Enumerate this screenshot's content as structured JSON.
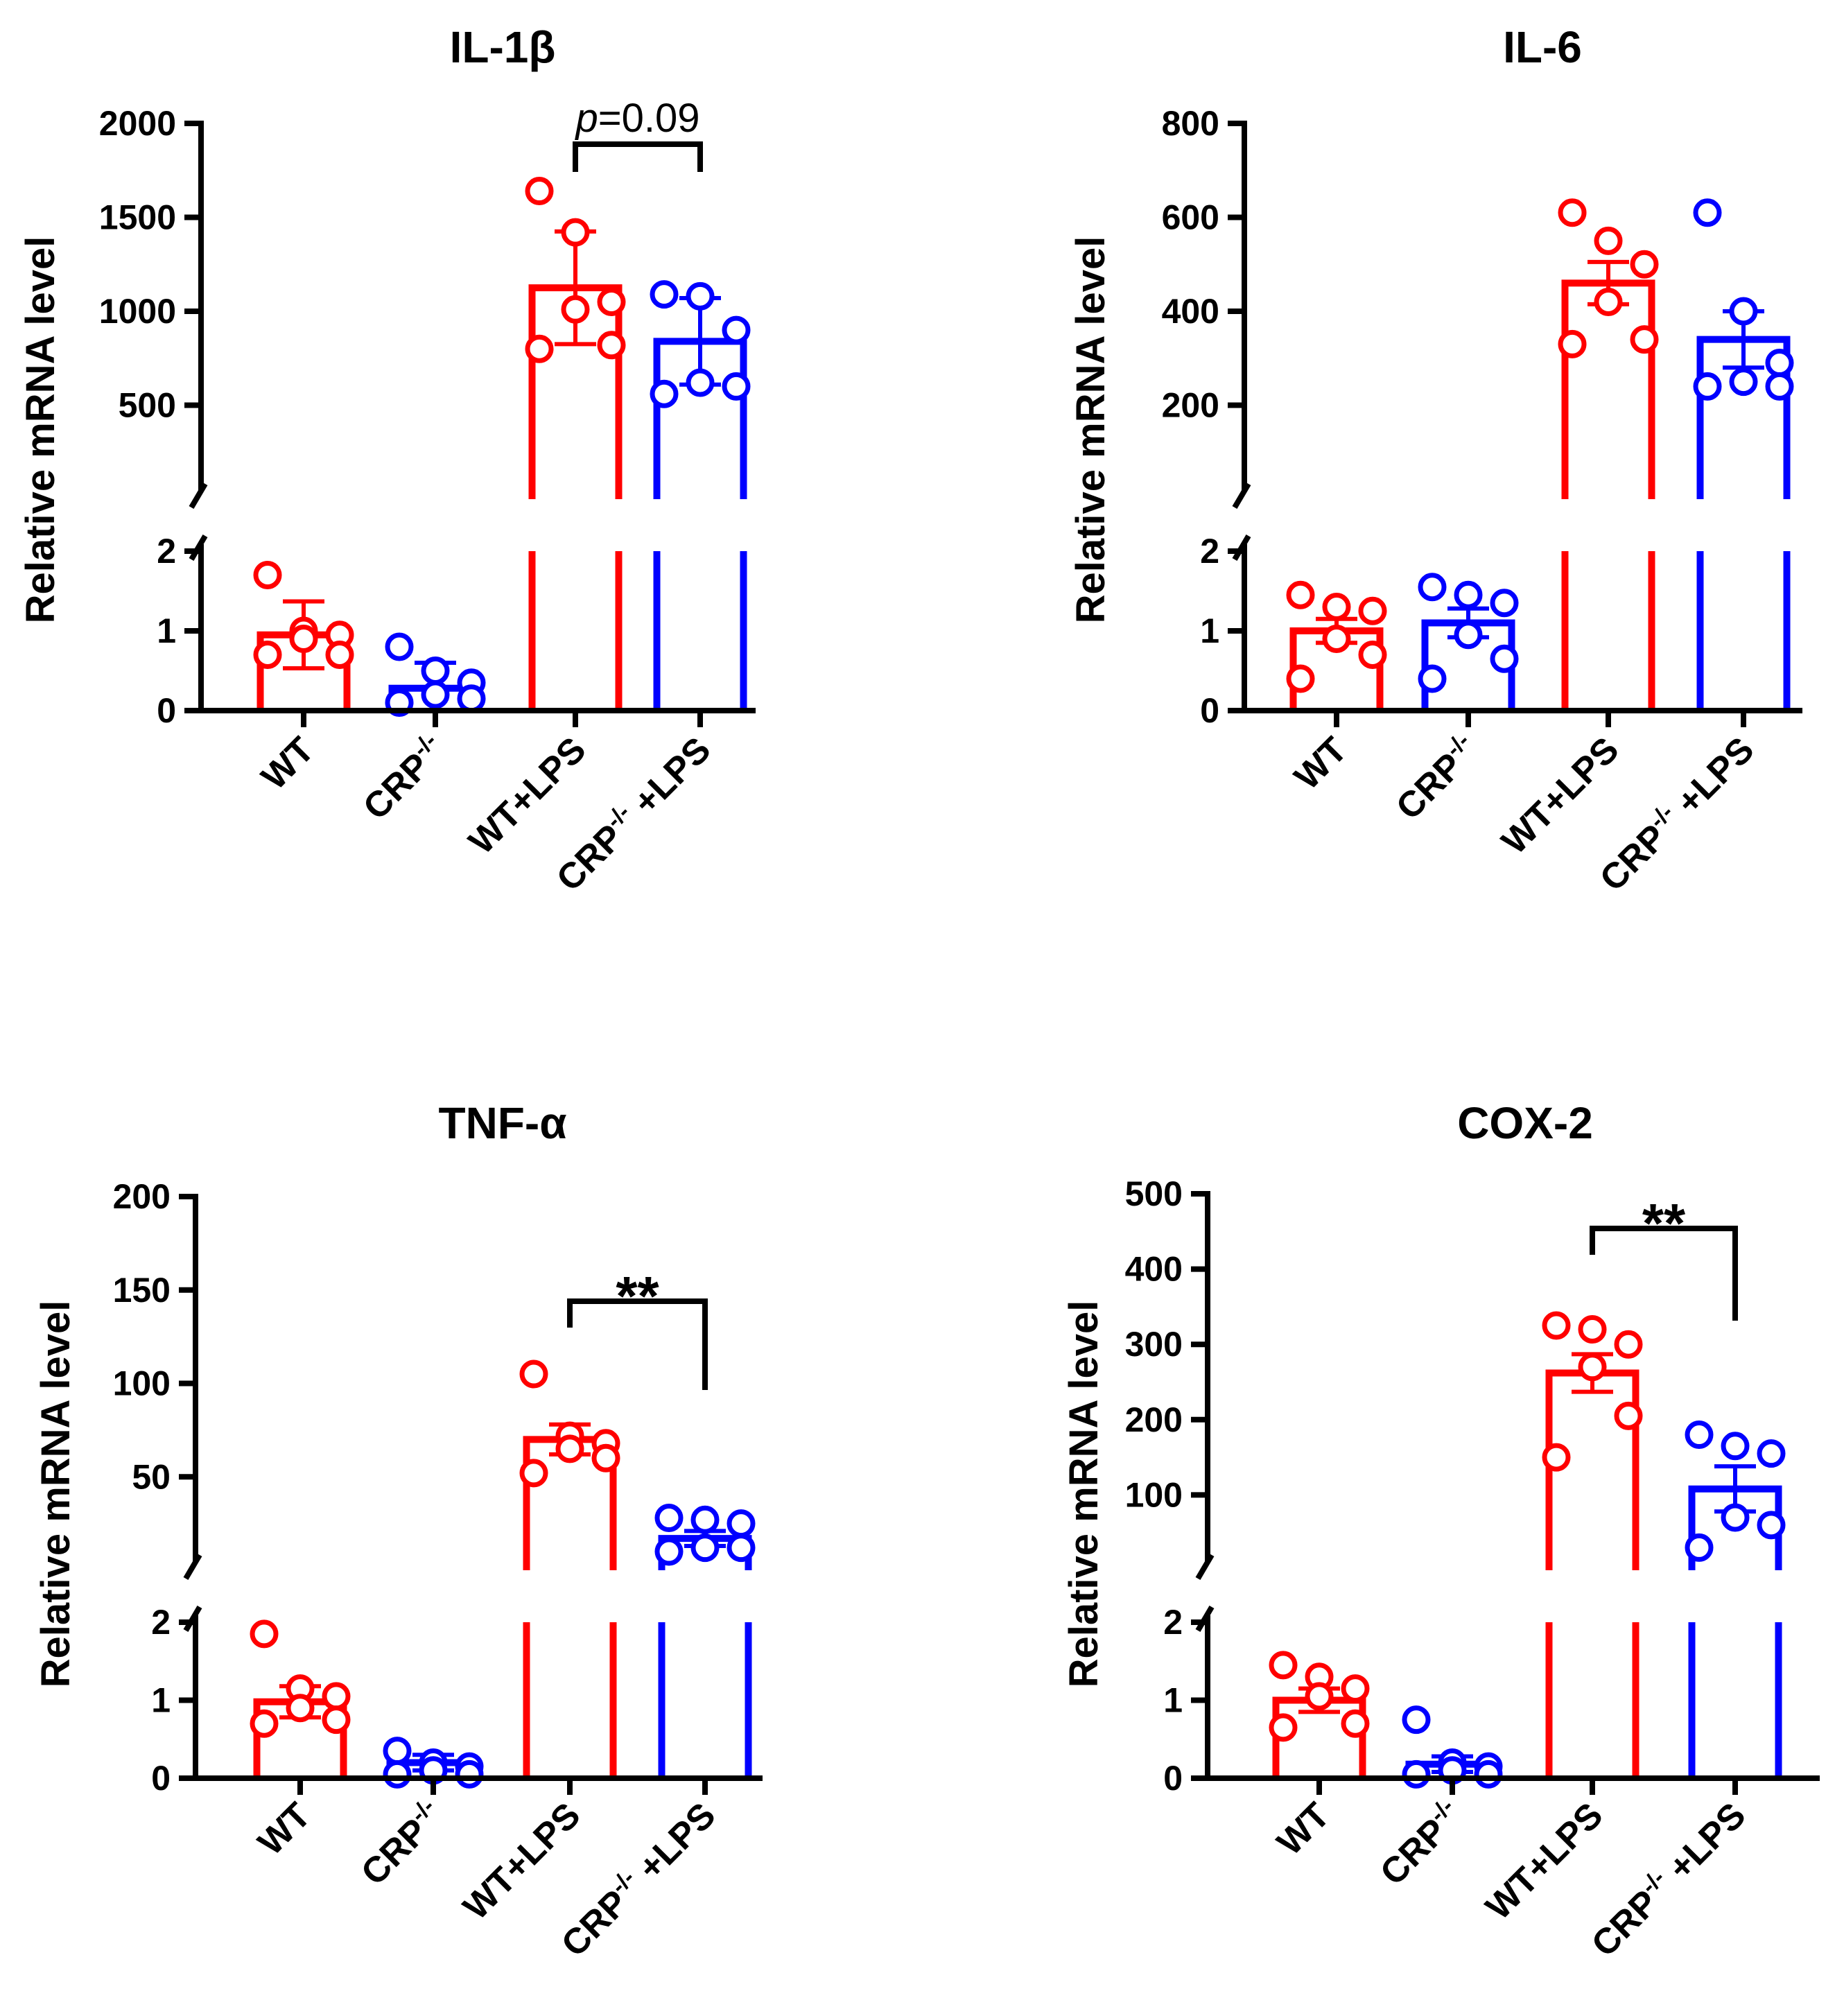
{
  "colors": {
    "wt": "#ff0000",
    "crp": "#0000ff",
    "axis": "#000000"
  },
  "chart_data": [
    {
      "type": "bar",
      "title": "IL-1β",
      "ylabel": "Relative mRNA level",
      "categories": [
        "WT",
        "CRP-/-",
        "WT+LPS",
        "CRP-/- +LPS"
      ],
      "category_main": [
        "WT",
        "CRP",
        "WT+LPS",
        "CRP"
      ],
      "category_sup": [
        "",
        "-/-",
        "",
        "-/-"
      ],
      "category_tail": [
        "",
        "",
        "",
        " +LPS"
      ],
      "values": [
        0.95,
        0.28,
        1125,
        840
      ],
      "errors": [
        0.42,
        0.32,
        300,
        230
      ],
      "points": [
        [
          1.7,
          1.0,
          0.95,
          0.9,
          0.7,
          0.7
        ],
        [
          0.8,
          0.5,
          0.35,
          0.2,
          0.15,
          0.1
        ],
        [
          1640,
          1420,
          1050,
          1010,
          820,
          800
        ],
        [
          1090,
          1080,
          900,
          620,
          600,
          560
        ]
      ],
      "lower_ylim": [
        0,
        2
      ],
      "lower_ticks": [
        "0",
        "1",
        "2"
      ],
      "upper_ylim": [
        0,
        2000
      ],
      "upper_ticks": [
        "500",
        "1000",
        "1500",
        "2000"
      ],
      "annotation": {
        "prefix": "p",
        "suffix": "=0.09",
        "from": 2,
        "to": 3
      }
    },
    {
      "type": "bar",
      "title": "IL-6",
      "ylabel": "Relative mRNA level",
      "categories": [
        "WT",
        "CRP-/-",
        "WT+LPS",
        "CRP-/- +LPS"
      ],
      "category_main": [
        "WT",
        "CRP",
        "WT+LPS",
        "CRP"
      ],
      "category_sup": [
        "",
        "-/-",
        "",
        "-/-"
      ],
      "category_tail": [
        "",
        "",
        "",
        " +LPS"
      ],
      "values": [
        1.0,
        1.1,
        460,
        340
      ],
      "errors": [
        0.15,
        0.18,
        45,
        60
      ],
      "points": [
        [
          1.45,
          1.3,
          1.25,
          0.9,
          0.7,
          0.4
        ],
        [
          1.55,
          1.45,
          1.35,
          0.95,
          0.65,
          0.4
        ],
        [
          610,
          550,
          500,
          420,
          340,
          330
        ],
        [
          610,
          400,
          290,
          250,
          240,
          240
        ]
      ],
      "lower_ylim": [
        0,
        2
      ],
      "lower_ticks": [
        "0",
        "1",
        "2"
      ],
      "upper_ylim": [
        0,
        800
      ],
      "upper_ticks": [
        "200",
        "400",
        "600",
        "800"
      ],
      "annotation": null
    },
    {
      "type": "bar",
      "title": "TNF-α",
      "ylabel": "Relative mRNA level",
      "categories": [
        "WT",
        "CRP-/-",
        "WT+LPS",
        "CRP-/- +LPS"
      ],
      "category_main": [
        "WT",
        "CRP",
        "WT+LPS",
        "CRP"
      ],
      "category_sup": [
        "",
        "-/-",
        "",
        "-/-"
      ],
      "category_tail": [
        "",
        "",
        "",
        " +LPS"
      ],
      "values": [
        0.98,
        0.2,
        70,
        17
      ],
      "errors": [
        0.2,
        0.1,
        8,
        4
      ],
      "points": [
        [
          1.85,
          1.15,
          1.05,
          0.9,
          0.75,
          0.7
        ],
        [
          0.35,
          0.2,
          0.15,
          0.1,
          0.05,
          0.05
        ],
        [
          105,
          72,
          68,
          65,
          60,
          52
        ],
        [
          28,
          27,
          25,
          12,
          12,
          10
        ]
      ],
      "lower_ylim": [
        0,
        2
      ],
      "lower_ticks": [
        "0",
        "1",
        "2"
      ],
      "upper_ylim": [
        0,
        200
      ],
      "upper_ticks": [
        "50",
        "100",
        "150",
        "200"
      ],
      "annotation": {
        "prefix": "**",
        "suffix": "",
        "from": 2,
        "to": 3
      }
    },
    {
      "type": "bar",
      "title": "COX-2",
      "ylabel": "Relative mRNA level",
      "categories": [
        "WT",
        "CRP-/-",
        "WT+LPS",
        "CRP-/- +LPS"
      ],
      "category_main": [
        "WT",
        "CRP",
        "WT+LPS",
        "CRP"
      ],
      "category_sup": [
        "",
        "-/-",
        "",
        "-/-"
      ],
      "category_tail": [
        "",
        "",
        "",
        " +LPS"
      ],
      "values": [
        1.0,
        0.18,
        262,
        108
      ],
      "errors": [
        0.15,
        0.1,
        25,
        30
      ],
      "points": [
        [
          1.45,
          1.3,
          1.15,
          1.05,
          0.7,
          0.65
        ],
        [
          0.75,
          0.2,
          0.15,
          0.1,
          0.05,
          0.05
        ],
        [
          320,
          325,
          300,
          270,
          205,
          150
        ],
        [
          180,
          165,
          155,
          70,
          60,
          30
        ]
      ],
      "lower_ylim": [
        0,
        2
      ],
      "lower_ticks": [
        "0",
        "1",
        "2"
      ],
      "upper_ylim": [
        0,
        500
      ],
      "upper_ticks": [
        "100",
        "200",
        "300",
        "400",
        "500"
      ],
      "annotation": {
        "prefix": "**",
        "suffix": "",
        "from": 2,
        "to": 3
      }
    }
  ]
}
